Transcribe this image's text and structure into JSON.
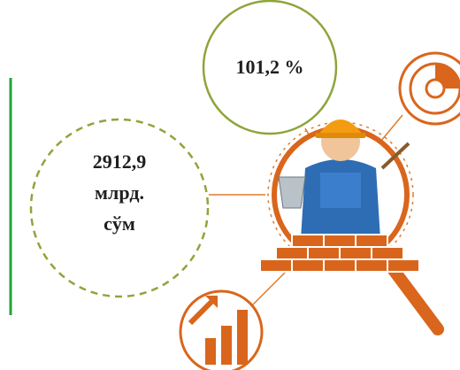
{
  "indicators": [
    {
      "value": "101,2 %"
    },
    {
      "lines": [
        "2912,9",
        "млрд.",
        "сўм"
      ]
    }
  ]
}
